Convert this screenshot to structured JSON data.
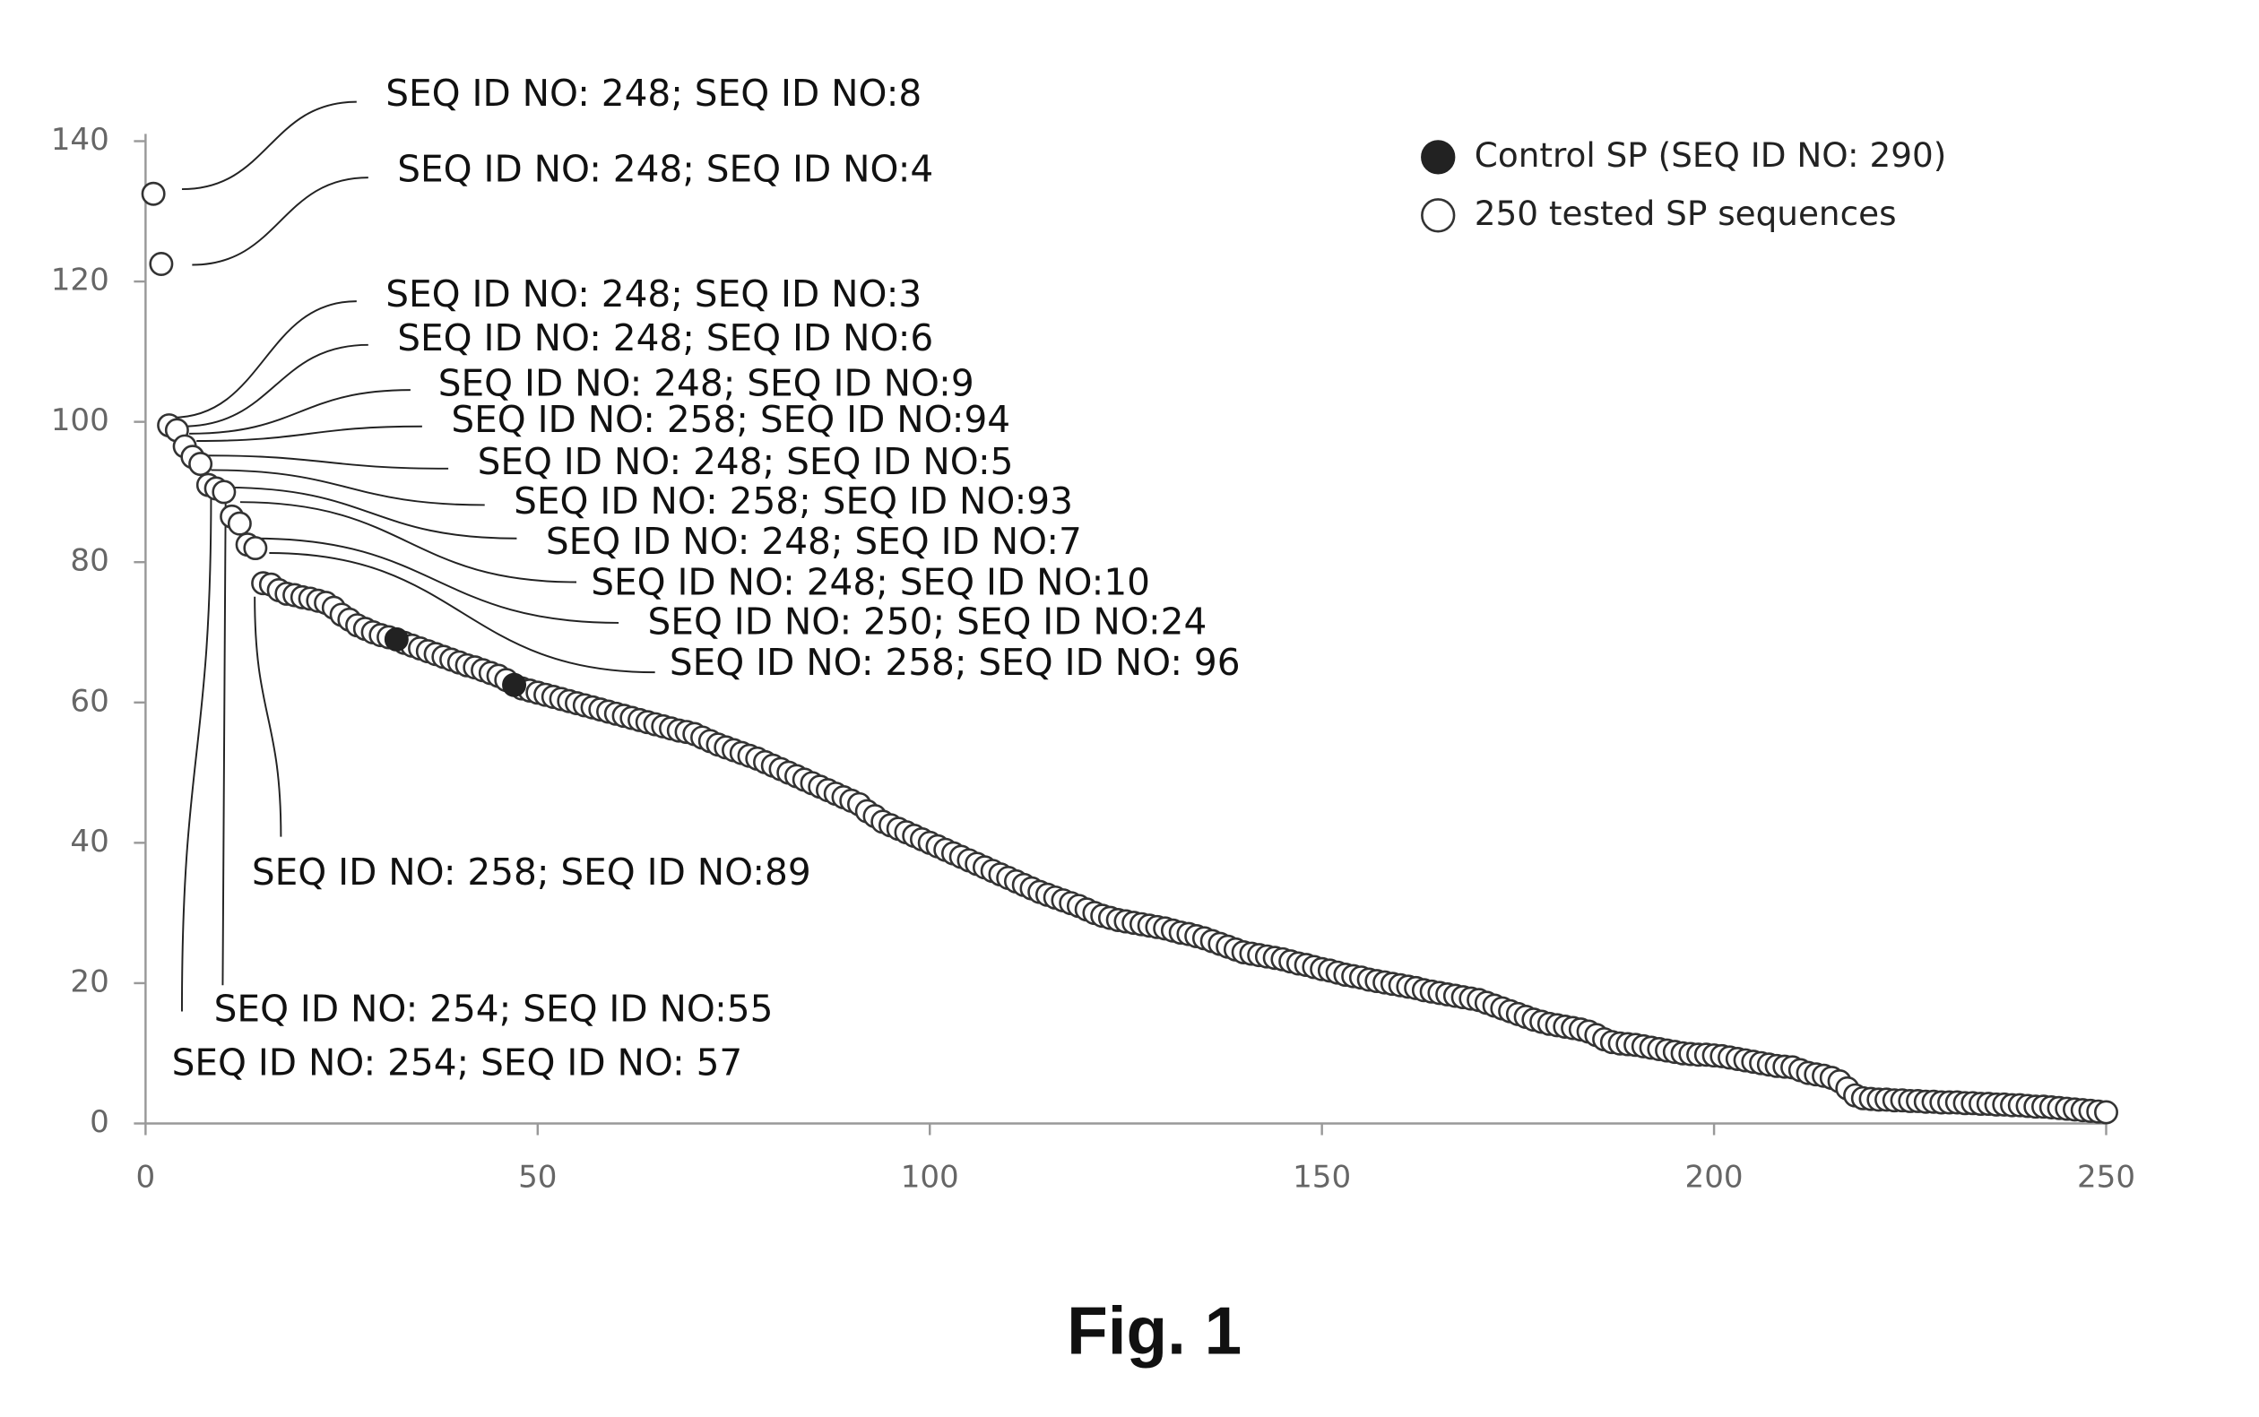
{
  "chart_data": {
    "type": "scatter",
    "title": "Fig. 1",
    "xlim": [
      0,
      250
    ],
    "ylim": [
      0,
      140
    ],
    "xticks": [
      0,
      50,
      100,
      150,
      200,
      250
    ],
    "yticks": [
      0,
      20,
      40,
      60,
      80,
      100,
      120,
      140
    ],
    "legend": "upper right",
    "series": [
      {
        "name": "Control SP (SEQ ID NO: 290)",
        "color": "#222222",
        "marker": "filled",
        "x": [
          32,
          47
        ],
        "values": [
          69,
          62.5
        ]
      },
      {
        "name": "250 tested SP sequences",
        "color": "#333333",
        "marker": "open",
        "x": [
          1,
          2,
          3,
          4,
          5,
          6,
          7,
          8,
          9,
          10,
          11,
          12,
          13,
          14,
          15,
          16,
          17,
          18,
          19,
          20,
          21,
          22,
          23,
          24,
          25,
          26,
          27,
          28,
          29,
          30,
          31,
          33,
          34,
          35,
          36,
          37,
          38,
          39,
          40,
          41,
          42,
          43,
          44,
          45,
          46,
          48,
          49,
          50,
          51,
          52,
          53,
          54,
          55,
          56,
          57,
          58,
          59,
          60,
          61,
          62,
          63,
          64,
          65,
          66,
          67,
          68,
          69,
          70,
          71,
          72,
          73,
          74,
          75,
          76,
          77,
          78,
          79,
          80,
          81,
          82,
          83,
          84,
          85,
          86,
          87,
          88,
          89,
          90,
          91,
          92,
          93,
          94,
          95,
          96,
          97,
          98,
          99,
          100,
          101,
          102,
          103,
          104,
          105,
          106,
          107,
          108,
          109,
          110,
          111,
          112,
          113,
          114,
          115,
          116,
          117,
          118,
          119,
          120,
          121,
          122,
          123,
          124,
          125,
          126,
          127,
          128,
          129,
          130,
          131,
          132,
          133,
          134,
          135,
          136,
          137,
          138,
          139,
          140,
          141,
          142,
          143,
          144,
          145,
          146,
          147,
          148,
          149,
          150,
          151,
          152,
          153,
          154,
          155,
          156,
          157,
          158,
          159,
          160,
          161,
          162,
          163,
          164,
          165,
          166,
          167,
          168,
          169,
          170,
          171,
          172,
          173,
          174,
          175,
          176,
          177,
          178,
          179,
          180,
          181,
          182,
          183,
          184,
          185,
          186,
          187,
          188,
          189,
          190,
          191,
          192,
          193,
          194,
          195,
          196,
          197,
          198,
          199,
          200,
          201,
          202,
          203,
          204,
          205,
          206,
          207,
          208,
          209,
          210,
          211,
          212,
          213,
          214,
          215,
          216,
          217,
          218,
          219,
          220,
          221,
          222,
          223,
          224,
          225,
          226,
          227,
          228,
          229,
          230,
          231,
          232,
          233,
          234,
          235,
          236,
          237,
          238,
          239,
          240,
          241,
          242,
          243,
          244,
          245,
          246,
          247,
          248,
          249,
          250
        ],
        "values": [
          132.5,
          122.5,
          99.5,
          98.8,
          96.5,
          95,
          94,
          91,
          90.5,
          90,
          86.5,
          85.5,
          82.5,
          82,
          77,
          76.8,
          76,
          75.5,
          75.3,
          75,
          74.8,
          74.5,
          74.2,
          73.5,
          72.5,
          71.8,
          71,
          70.5,
          70,
          69.6,
          69.3,
          68.5,
          68.1,
          67.7,
          67.3,
          66.9,
          66.5,
          66.1,
          65.7,
          65.3,
          65,
          64.6,
          64.2,
          63.8,
          63.2,
          62,
          61.7,
          61.4,
          61.1,
          60.8,
          60.5,
          60.2,
          59.9,
          59.6,
          59.3,
          59,
          58.7,
          58.4,
          58.1,
          57.8,
          57.5,
          57.2,
          56.9,
          56.6,
          56.3,
          56,
          55.8,
          55.5,
          55,
          54.5,
          54,
          53.6,
          53.2,
          52.8,
          52.4,
          52,
          51.5,
          51,
          50.5,
          50,
          49.5,
          49,
          48.5,
          48,
          47.5,
          47,
          46.5,
          46,
          45.5,
          44.5,
          43.8,
          43,
          42.5,
          42,
          41.5,
          41,
          40.5,
          40,
          39.5,
          39,
          38.5,
          38,
          37.5,
          37,
          36.5,
          36,
          35.5,
          35,
          34.5,
          34,
          33.5,
          33,
          32.6,
          32.2,
          31.8,
          31.4,
          31,
          30.5,
          30,
          29.6,
          29.3,
          29,
          28.8,
          28.6,
          28.4,
          28.2,
          28,
          27.8,
          27.5,
          27.2,
          27,
          26.7,
          26.4,
          26,
          25.6,
          25.2,
          24.8,
          24.4,
          24.2,
          24,
          23.8,
          23.6,
          23.4,
          23.1,
          22.8,
          22.6,
          22.3,
          22,
          21.8,
          21.5,
          21.2,
          21,
          20.8,
          20.5,
          20.3,
          20.1,
          19.9,
          19.7,
          19.5,
          19.3,
          19,
          18.8,
          18.6,
          18.4,
          18.2,
          18,
          17.8,
          17.6,
          17.2,
          16.8,
          16.4,
          16,
          15.6,
          15.2,
          14.8,
          14.5,
          14.2,
          14,
          13.8,
          13.6,
          13.4,
          13.1,
          12.6,
          12,
          11.6,
          11.4,
          11.3,
          11.2,
          11,
          10.8,
          10.6,
          10.4,
          10.2,
          10,
          9.9,
          9.8,
          9.8,
          9.7,
          9.6,
          9.4,
          9.2,
          9,
          8.8,
          8.6,
          8.4,
          8.2,
          8.1,
          8,
          7.6,
          7.2,
          7,
          6.8,
          6.5,
          6,
          5,
          4,
          3.6,
          3.5,
          3.4,
          3.4,
          3.3,
          3.3,
          3.2,
          3.2,
          3.1,
          3.1,
          3,
          3,
          3,
          2.9,
          2.9,
          2.8,
          2.8,
          2.7,
          2.7,
          2.6,
          2.6,
          2.5,
          2.4,
          2.4,
          2.3,
          2.2,
          2.1,
          2,
          1.9,
          1.8,
          1.7,
          1.6
        ]
      }
    ],
    "annotations": [
      "SEQ ID NO: 248; SEQ ID NO:8",
      "SEQ ID NO: 248; SEQ ID NO:4",
      "SEQ ID NO: 248; SEQ ID NO:3",
      "SEQ ID NO: 248; SEQ ID NO:6",
      "SEQ ID NO: 248; SEQ ID NO:9",
      "SEQ ID NO: 258; SEQ ID NO:94",
      "SEQ ID NO: 248; SEQ ID NO:5",
      "SEQ ID NO: 258; SEQ ID NO:93",
      "SEQ ID NO: 248; SEQ ID NO:7",
      "SEQ ID NO: 248; SEQ ID NO:10",
      "SEQ ID NO: 250; SEQ ID NO:24",
      "SEQ ID NO: 258; SEQ ID NO: 96",
      "SEQ ID NO: 258; SEQ ID NO:89",
      "SEQ ID NO: 254; SEQ ID NO:55",
      "SEQ ID NO: 254; SEQ ID NO: 57"
    ]
  }
}
